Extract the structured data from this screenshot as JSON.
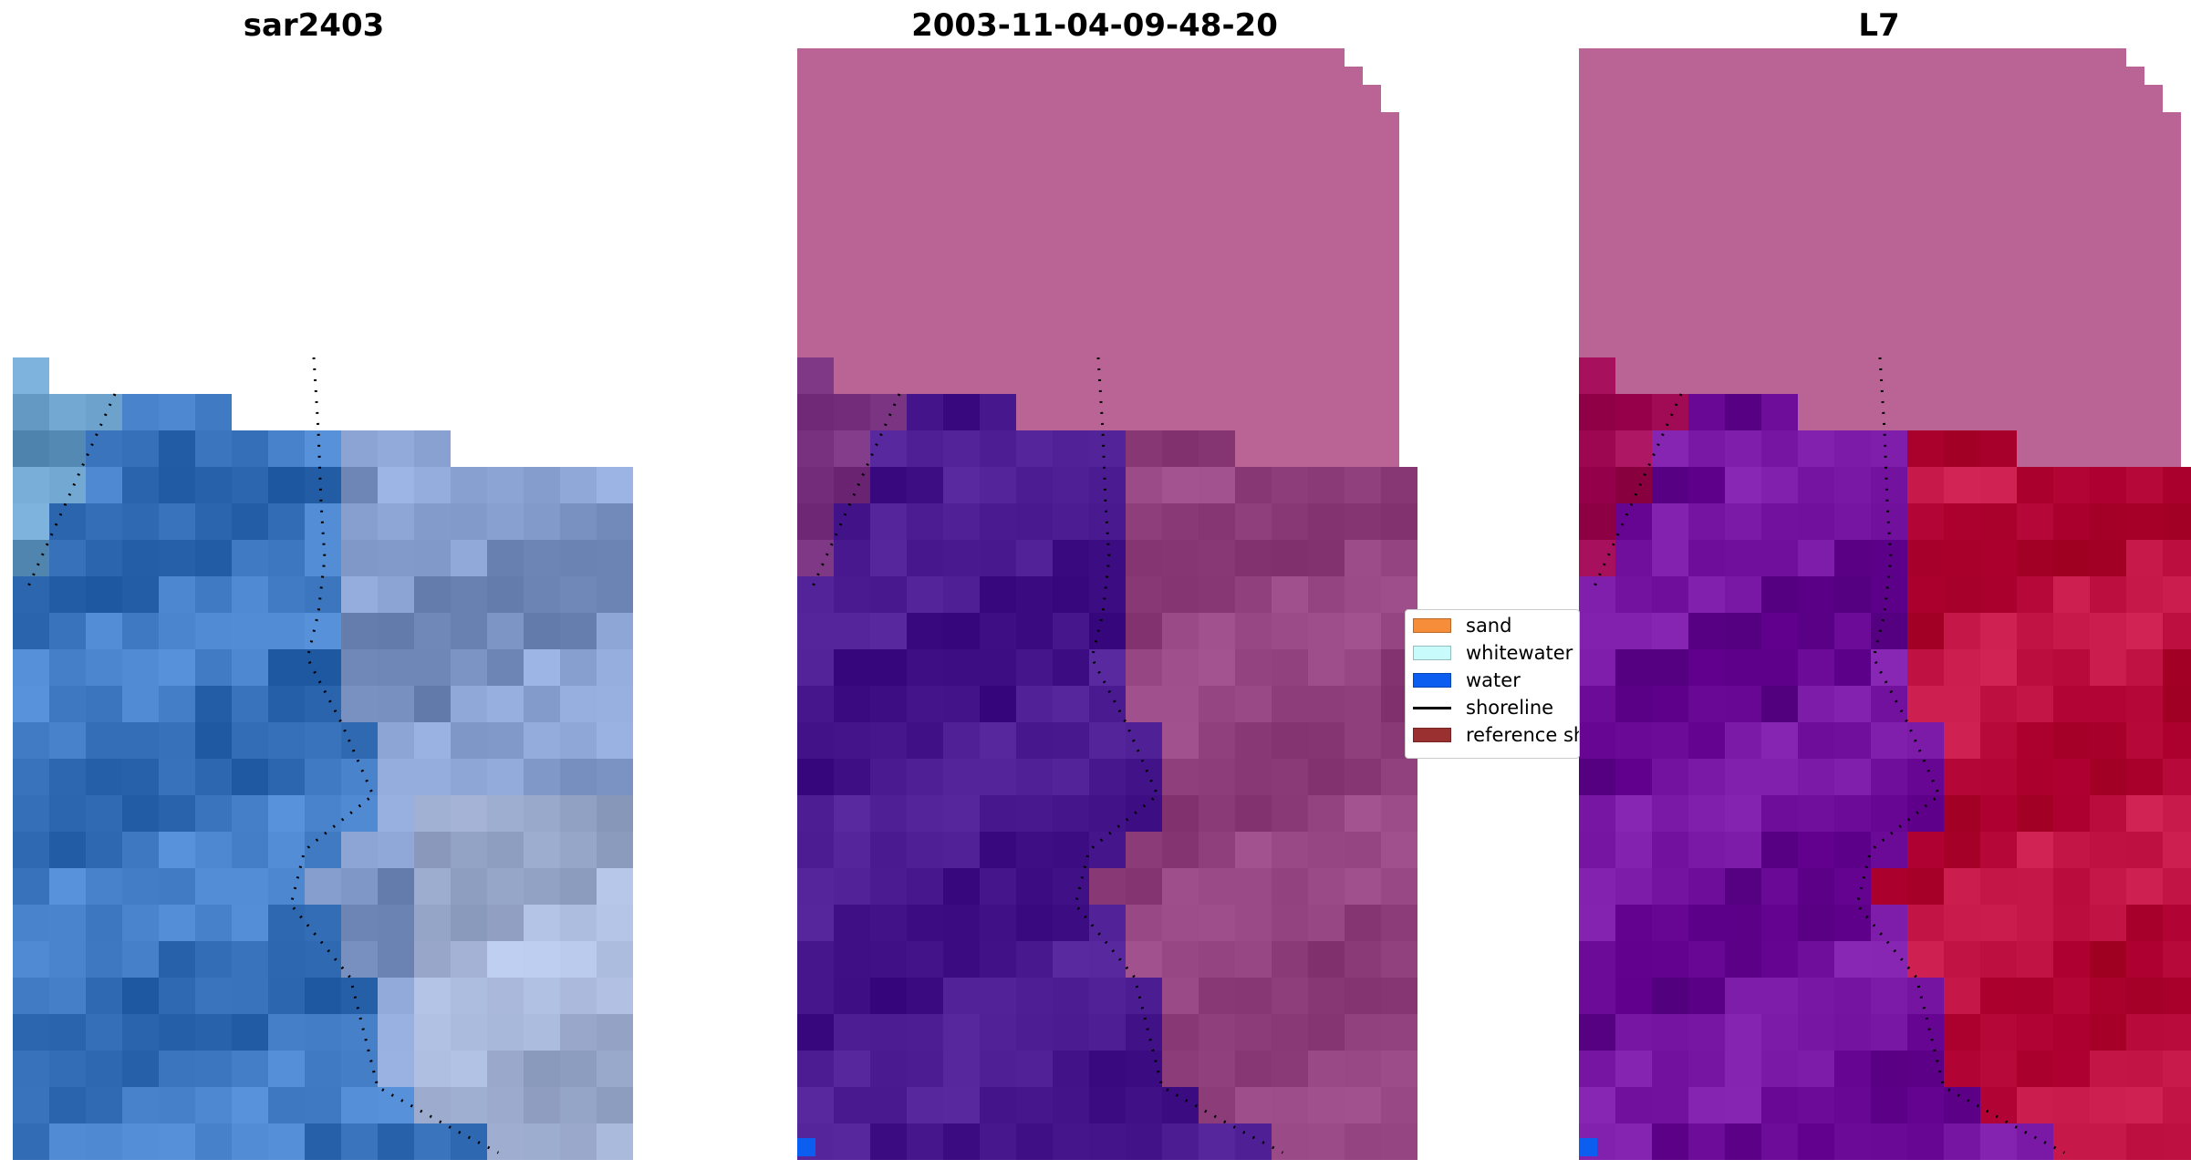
{
  "titles": {
    "panel1": "sar2403",
    "panel2": "2003-11-04-09-48-20",
    "panel3": "L7"
  },
  "legend": {
    "items": [
      {
        "label": "sand",
        "color": "#f58d3a",
        "kind": "patch"
      },
      {
        "label": "whitewater",
        "color": "#c8fbfb",
        "kind": "patch"
      },
      {
        "label": "water",
        "color": "#0b5ef0",
        "kind": "patch"
      },
      {
        "label": "shoreline",
        "color": "#000000",
        "kind": "line"
      },
      {
        "label": "reference shoreline",
        "color": "#9b3030",
        "kind": "patch"
      }
    ]
  },
  "colors": {
    "nodata_pink": "#ba6496",
    "water_class": "#502196",
    "water_pixel": "#0b5ef0",
    "rgb_water": "#4a84cc",
    "rgb_land": "#8ea6d6",
    "index_land": "#c51848",
    "index_water": "#7a1aa6"
  }
}
